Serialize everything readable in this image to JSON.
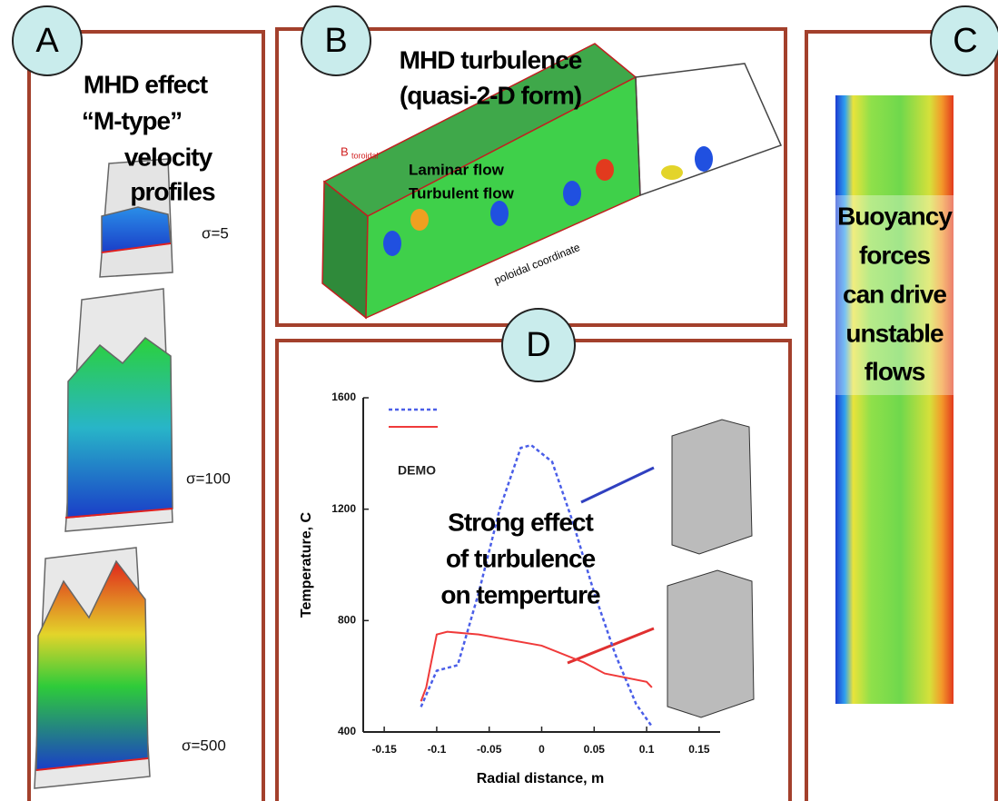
{
  "panels": {
    "a": {
      "letter": "A",
      "lines": [
        "MHD effect",
        "“M-type”",
        "velocity",
        "profiles"
      ],
      "labels": [
        "σ=5",
        "σ=100",
        "σ=500"
      ]
    },
    "b": {
      "letter": "B",
      "lines": [
        "MHD turbulence",
        "(quasi-2-D form)"
      ],
      "labels": [
        "Laminar flow",
        "Turbulent flow",
        "B",
        "toroidal",
        "poloidal coordinate"
      ]
    },
    "c": {
      "letter": "C",
      "lines": [
        "Buoyancy",
        "forces",
        "can drive",
        "unstable",
        "flows"
      ]
    },
    "d": {
      "letter": "D",
      "lines": [
        "Strong effect",
        "of turbulence",
        "on temperture"
      ],
      "tag": "DEMO"
    }
  },
  "chart_data": {
    "type": "line",
    "x_label": "Radial distance, m",
    "y_label": "Temperature, C",
    "xlim": [
      -0.17,
      0.17
    ],
    "ylim": [
      400,
      1600
    ],
    "xticks": [
      -0.15,
      -0.1,
      -0.05,
      0,
      0.05,
      0.1,
      0.15
    ],
    "yticks": [
      400,
      800,
      1200,
      1600
    ],
    "series": [
      {
        "color": "#4a5ee8",
        "dash": true,
        "x": [
          -0.115,
          -0.1,
          -0.08,
          -0.06,
          -0.04,
          -0.02,
          -0.01,
          0.01,
          0.03,
          0.05,
          0.07,
          0.09,
          0.105
        ],
        "values": [
          490,
          620,
          640,
          900,
          1200,
          1420,
          1430,
          1370,
          1150,
          900,
          680,
          500,
          420
        ]
      },
      {
        "color": "#f03a3a",
        "dash": false,
        "x": [
          -0.115,
          -0.11,
          -0.1,
          -0.09,
          -0.06,
          0,
          0.04,
          0.06,
          0.1,
          0.105
        ],
        "values": [
          510,
          560,
          750,
          760,
          750,
          710,
          650,
          610,
          580,
          560
        ]
      }
    ]
  }
}
